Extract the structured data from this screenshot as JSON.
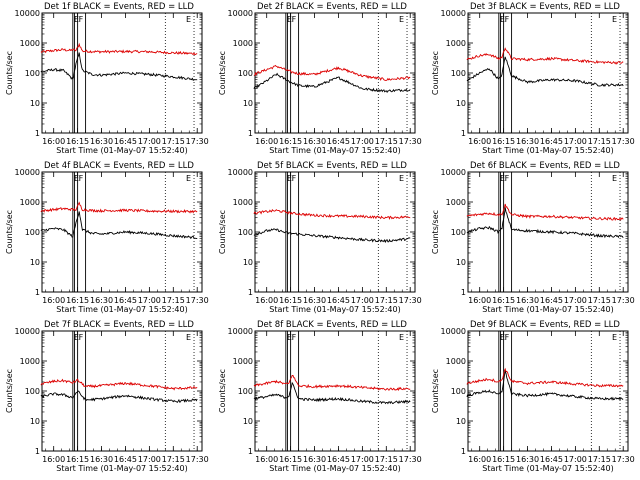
{
  "figure": {
    "panel_title_template": "BLACK = Events, RED = LLD",
    "panels": [
      {
        "det": "Det 1f",
        "ylabel": "Counts/sec",
        "xlabel": "Start Time (01-May-07 15:52:40)"
      },
      {
        "det": "Det 2f",
        "ylabel": "Counts/sec",
        "xlabel": "Start Time (01-May-07 15:52:40)"
      },
      {
        "det": "Det 3f",
        "ylabel": "Counts/sec",
        "xlabel": "Start Time (01-May-07 15:52:40)"
      },
      {
        "det": "Det 4f",
        "ylabel": "Counts/sec",
        "xlabel": "Start Time (01-May-07 15:52:40)"
      },
      {
        "det": "Det 5f",
        "ylabel": "Counts/sec",
        "xlabel": "Start Time (01-May-07 15:52:40)"
      },
      {
        "det": "Det 6f",
        "ylabel": "Counts/sec",
        "xlabel": "Start Time (01-May-07 15:52:40)"
      },
      {
        "det": "Det 7f",
        "ylabel": "Counts/sec",
        "xlabel": "Start Time (01-May-07 15:52:40)"
      },
      {
        "det": "Det 8f",
        "ylabel": "Counts/sec",
        "xlabel": "Start Time (01-May-07 15:52:40)"
      },
      {
        "det": "Det 9f",
        "ylabel": "Counts/sec",
        "xlabel": "Start Time (01-May-07 15:52:40)"
      }
    ],
    "markers": [
      "E",
      "F",
      "E"
    ],
    "colors": {
      "events": "#000000",
      "lld": "#dd0000",
      "axes": "#000000"
    }
  },
  "chart_data": [
    {
      "type": "line",
      "title": "Det 1f BLACK = Events, RED = LLD",
      "xlabel": "Start Time (01-May-07 15:52:40)",
      "ylabel": "Counts/sec",
      "yscale": "log",
      "ylim": [
        1,
        10000
      ],
      "yticks": [
        "1",
        "10",
        "100",
        "1000",
        "10000"
      ],
      "xtick_labels": [
        "16:00",
        "16:15",
        "16:30",
        "16:45",
        "17:00",
        "17:15",
        "17:30"
      ],
      "x": [
        "15:52",
        "16:00",
        "16:06",
        "16:10",
        "16:12",
        "16:14",
        "16:16",
        "16:18",
        "16:24",
        "16:30",
        "16:45",
        "17:00",
        "17:15",
        "17:30"
      ],
      "series": [
        {
          "name": "LLD",
          "color": "red",
          "values": [
            500,
            560,
            600,
            560,
            600,
            560,
            900,
            540,
            520,
            510,
            520,
            510,
            470,
            440
          ]
        },
        {
          "name": "Events",
          "color": "black",
          "values": [
            110,
            130,
            120,
            80,
            60,
            200,
            450,
            120,
            90,
            85,
            100,
            90,
            75,
            60
          ]
        }
      ],
      "vlines_solid": [
        "16:12",
        "16:13",
        "16:15",
        "16:20"
      ],
      "vlines_dotted": [
        "17:10",
        "17:28"
      ]
    },
    {
      "type": "line",
      "title": "Det 2f BLACK = Events, RED = LLD",
      "xlabel": "Start Time (01-May-07 15:52:40)",
      "ylabel": "Counts/sec",
      "yscale": "log",
      "ylim": [
        1,
        10000
      ],
      "yticks": [
        "1",
        "10",
        "100",
        "1000",
        "10000"
      ],
      "xtick_labels": [
        "16:00",
        "16:15",
        "16:30",
        "16:45",
        "17:00",
        "17:15",
        "17:30"
      ],
      "x": [
        "15:52",
        "16:00",
        "16:06",
        "16:10",
        "16:15",
        "16:20",
        "16:30",
        "16:45",
        "17:00",
        "17:15",
        "17:30"
      ],
      "series": [
        {
          "name": "LLD",
          "color": "red",
          "values": [
            90,
            130,
            170,
            140,
            110,
            95,
            90,
            150,
            80,
            60,
            70
          ]
        },
        {
          "name": "Events",
          "color": "black",
          "values": [
            30,
            55,
            90,
            70,
            50,
            38,
            35,
            70,
            30,
            25,
            28
          ]
        }
      ],
      "vlines_solid": [
        "16:12",
        "16:13",
        "16:15",
        "16:20"
      ],
      "vlines_dotted": [
        "17:10",
        "17:28"
      ]
    },
    {
      "type": "line",
      "title": "Det 3f BLACK = Events, RED = LLD",
      "xlabel": "Start Time (01-May-07 15:52:40)",
      "ylabel": "Counts/sec",
      "yscale": "log",
      "ylim": [
        1,
        10000
      ],
      "yticks": [
        "1",
        "10",
        "100",
        "1000",
        "10000"
      ],
      "xtick_labels": [
        "16:00",
        "16:15",
        "16:30",
        "16:45",
        "17:00",
        "17:15",
        "17:30"
      ],
      "x": [
        "15:52",
        "16:00",
        "16:06",
        "16:12",
        "16:14",
        "16:16",
        "16:20",
        "16:30",
        "16:45",
        "17:00",
        "17:15",
        "17:30"
      ],
      "series": [
        {
          "name": "LLD",
          "color": "red",
          "values": [
            280,
            380,
            420,
            300,
            340,
            700,
            300,
            280,
            300,
            260,
            230,
            220
          ]
        },
        {
          "name": "Events",
          "color": "black",
          "values": [
            55,
            100,
            140,
            60,
            90,
            350,
            80,
            50,
            60,
            55,
            40,
            40
          ]
        }
      ],
      "vlines_solid": [
        "16:12",
        "16:13",
        "16:15",
        "16:20"
      ],
      "vlines_dotted": [
        "17:10",
        "17:28"
      ]
    },
    {
      "type": "line",
      "title": "Det 4f BLACK = Events, RED = LLD",
      "xlabel": "Start Time (01-May-07 15:52:40)",
      "ylabel": "Counts/sec",
      "yscale": "log",
      "ylim": [
        1,
        10000
      ],
      "yticks": [
        "1",
        "10",
        "100",
        "1000",
        "10000"
      ],
      "xtick_labels": [
        "16:00",
        "16:15",
        "16:30",
        "16:45",
        "17:00",
        "17:15",
        "17:30"
      ],
      "x": [
        "15:52",
        "16:00",
        "16:06",
        "16:12",
        "16:14",
        "16:16",
        "16:18",
        "16:24",
        "16:30",
        "16:45",
        "17:00",
        "17:15",
        "17:30"
      ],
      "series": [
        {
          "name": "LLD",
          "color": "red",
          "values": [
            500,
            560,
            600,
            560,
            560,
            900,
            560,
            520,
            510,
            530,
            500,
            490,
            480
          ]
        },
        {
          "name": "Events",
          "color": "black",
          "values": [
            110,
            130,
            120,
            70,
            200,
            500,
            120,
            90,
            85,
            100,
            90,
            75,
            65
          ]
        }
      ],
      "vlines_solid": [
        "16:12",
        "16:13",
        "16:15",
        "16:20"
      ],
      "vlines_dotted": [
        "17:10",
        "17:28"
      ]
    },
    {
      "type": "line",
      "title": "Det 5f BLACK = Events, RED = LLD",
      "xlabel": "Start Time (01-May-07 15:52:40)",
      "ylabel": "Counts/sec",
      "yscale": "log",
      "ylim": [
        1,
        10000
      ],
      "yticks": [
        "1",
        "10",
        "100",
        "1000",
        "10000"
      ],
      "xtick_labels": [
        "16:00",
        "16:15",
        "16:30",
        "16:45",
        "17:00",
        "17:15",
        "17:30"
      ],
      "x": [
        "15:52",
        "16:00",
        "16:06",
        "16:12",
        "16:15",
        "16:20",
        "16:30",
        "16:45",
        "17:00",
        "17:15",
        "17:30"
      ],
      "series": [
        {
          "name": "LLD",
          "color": "red",
          "values": [
            420,
            480,
            520,
            460,
            430,
            400,
            360,
            340,
            330,
            300,
            320
          ]
        },
        {
          "name": "Events",
          "color": "black",
          "values": [
            80,
            110,
            120,
            95,
            90,
            85,
            75,
            65,
            55,
            50,
            60
          ]
        }
      ],
      "vlines_solid": [
        "16:12",
        "16:13",
        "16:15",
        "16:20"
      ],
      "vlines_dotted": [
        "17:10",
        "17:28"
      ]
    },
    {
      "type": "line",
      "title": "Det 6f BLACK = Events, RED = LLD",
      "xlabel": "Start Time (01-May-07 15:52:40)",
      "ylabel": "Counts/sec",
      "yscale": "log",
      "ylim": [
        1,
        10000
      ],
      "yticks": [
        "1",
        "10",
        "100",
        "1000",
        "10000"
      ],
      "xtick_labels": [
        "16:00",
        "16:15",
        "16:30",
        "16:45",
        "17:00",
        "17:15",
        "17:30"
      ],
      "x": [
        "15:52",
        "16:00",
        "16:06",
        "16:12",
        "16:14",
        "16:16",
        "16:20",
        "16:30",
        "16:45",
        "17:00",
        "17:15",
        "17:30"
      ],
      "series": [
        {
          "name": "LLD",
          "color": "red",
          "values": [
            340,
            390,
            420,
            380,
            400,
            800,
            380,
            330,
            330,
            300,
            280,
            270
          ]
        },
        {
          "name": "Events",
          "color": "black",
          "values": [
            100,
            130,
            140,
            100,
            130,
            600,
            120,
            110,
            100,
            90,
            75,
            70
          ]
        }
      ],
      "vlines_solid": [
        "16:12",
        "16:13",
        "16:15",
        "16:20"
      ],
      "vlines_dotted": [
        "17:10",
        "17:28"
      ]
    },
    {
      "type": "line",
      "title": "Det 7f BLACK = Events, RED = LLD",
      "xlabel": "Start Time (01-May-07 15:52:40)",
      "ylabel": "Counts/sec",
      "yscale": "log",
      "ylim": [
        1,
        10000
      ],
      "yticks": [
        "1",
        "10",
        "100",
        "1000",
        "10000"
      ],
      "xtick_labels": [
        "16:00",
        "16:15",
        "16:30",
        "16:45",
        "17:00",
        "17:15",
        "17:30"
      ],
      "x": [
        "15:52",
        "16:00",
        "16:06",
        "16:12",
        "16:15",
        "16:20",
        "16:30",
        "16:45",
        "17:00",
        "17:15",
        "17:30"
      ],
      "series": [
        {
          "name": "LLD",
          "color": "red",
          "values": [
            170,
            210,
            220,
            190,
            230,
            140,
            150,
            180,
            150,
            120,
            130
          ]
        },
        {
          "name": "Events",
          "color": "black",
          "values": [
            65,
            80,
            75,
            60,
            100,
            50,
            55,
            70,
            55,
            45,
            50
          ]
        }
      ],
      "vlines_solid": [
        "16:12",
        "16:13",
        "16:15",
        "16:20"
      ],
      "vlines_dotted": [
        "17:10",
        "17:28"
      ]
    },
    {
      "type": "line",
      "title": "Det 8f BLACK = Events, RED = LLD",
      "xlabel": "Start Time (01-May-07 15:52:40)",
      "ylabel": "Counts/sec",
      "yscale": "log",
      "ylim": [
        1,
        10000
      ],
      "yticks": [
        "1",
        "10",
        "100",
        "1000",
        "10000"
      ],
      "xtick_labels": [
        "16:00",
        "16:15",
        "16:30",
        "16:45",
        "17:00",
        "17:15",
        "17:30"
      ],
      "x": [
        "15:52",
        "16:00",
        "16:06",
        "16:12",
        "16:14",
        "16:16",
        "16:20",
        "16:30",
        "16:45",
        "17:00",
        "17:15",
        "17:30"
      ],
      "series": [
        {
          "name": "LLD",
          "color": "red",
          "values": [
            150,
            180,
            210,
            170,
            180,
            350,
            150,
            140,
            150,
            130,
            115,
            120
          ]
        },
        {
          "name": "Events",
          "color": "black",
          "values": [
            55,
            65,
            75,
            60,
            70,
            180,
            55,
            50,
            55,
            45,
            40,
            45
          ]
        }
      ],
      "vlines_solid": [
        "16:12",
        "16:13",
        "16:15",
        "16:20"
      ],
      "vlines_dotted": [
        "17:10",
        "17:28"
      ]
    },
    {
      "type": "line",
      "title": "Det 9f BLACK = Events, RED = LLD",
      "xlabel": "Start Time (01-May-07 15:52:40)",
      "ylabel": "Counts/sec",
      "yscale": "log",
      "ylim": [
        1,
        10000
      ],
      "yticks": [
        "1",
        "10",
        "100",
        "1000",
        "10000"
      ],
      "xtick_labels": [
        "16:00",
        "16:15",
        "16:30",
        "16:45",
        "17:00",
        "17:15",
        "17:30"
      ],
      "x": [
        "15:52",
        "16:00",
        "16:06",
        "16:12",
        "16:14",
        "16:16",
        "16:20",
        "16:30",
        "16:45",
        "17:00",
        "17:15",
        "17:30"
      ],
      "series": [
        {
          "name": "LLD",
          "color": "red",
          "values": [
            180,
            220,
            250,
            200,
            240,
            550,
            210,
            180,
            200,
            170,
            150,
            150
          ]
        },
        {
          "name": "Events",
          "color": "black",
          "values": [
            70,
            90,
            100,
            75,
            100,
            450,
            80,
            70,
            80,
            65,
            55,
            55
          ]
        }
      ],
      "vlines_solid": [
        "16:12",
        "16:13",
        "16:15",
        "16:20"
      ],
      "vlines_dotted": [
        "17:10",
        "17:28"
      ]
    }
  ]
}
